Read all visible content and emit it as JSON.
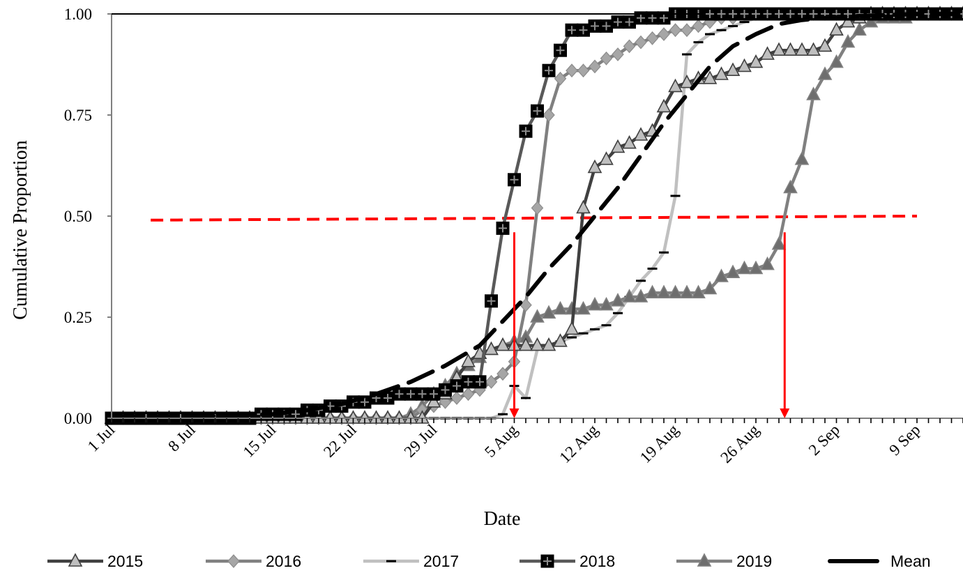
{
  "chart_data": {
    "type": "line",
    "xlabel": "Date",
    "ylabel": "Cumulative Proportion",
    "x_tick_labels": [
      "1 Jul",
      "8 Jul",
      "15 Jul",
      "22 Jul",
      "29 Jul",
      "5 Aug",
      "12 Aug",
      "19 Aug",
      "26 Aug",
      "2 Sep",
      "9 Sep"
    ],
    "x_tick_days": [
      0,
      7,
      14,
      21,
      28,
      35,
      42,
      49,
      56,
      63,
      70
    ],
    "xlim": [
      0,
      74
    ],
    "y_tick_labels": [
      "0.00",
      "0.25",
      "0.50",
      "0.75",
      "1.00"
    ],
    "y_tick_values": [
      0,
      0.25,
      0.5,
      0.75,
      1.0
    ],
    "ylim": [
      0,
      1
    ],
    "grid": false,
    "legend_position": "bottom",
    "series": [
      {
        "name": "2015",
        "style": "line-triangle",
        "color": "#404040",
        "marker_fill": "#bfbfbf",
        "x": [
          0,
          1,
          2,
          3,
          4,
          5,
          6,
          7,
          8,
          9,
          10,
          11,
          12,
          13,
          14,
          15,
          16,
          17,
          18,
          19,
          20,
          21,
          22,
          23,
          24,
          25,
          26,
          27,
          28,
          29,
          30,
          31,
          32,
          33,
          34,
          35,
          36,
          37,
          38,
          39,
          40,
          41,
          42,
          43,
          44,
          45,
          46,
          47,
          48,
          49,
          50,
          51,
          52,
          53,
          54,
          55,
          56,
          57,
          58,
          59,
          60,
          61,
          62,
          63,
          64,
          65,
          66,
          67,
          68,
          69,
          70,
          71,
          72,
          73,
          74
        ],
        "y": [
          0,
          0,
          0,
          0,
          0,
          0,
          0,
          0,
          0,
          0,
          0,
          0,
          0,
          0,
          0,
          0,
          0,
          0,
          0,
          0,
          0,
          0,
          0,
          0,
          0,
          0,
          0,
          0,
          0.04,
          0.06,
          0.1,
          0.14,
          0.16,
          0.17,
          0.18,
          0.18,
          0.18,
          0.18,
          0.18,
          0.19,
          0.22,
          0.52,
          0.62,
          0.64,
          0.67,
          0.68,
          0.7,
          0.71,
          0.77,
          0.82,
          0.83,
          0.84,
          0.84,
          0.85,
          0.86,
          0.87,
          0.88,
          0.9,
          0.91,
          0.91,
          0.91,
          0.91,
          0.92,
          0.96,
          0.98,
          0.99,
          1,
          1,
          1,
          1,
          1,
          1,
          1,
          1,
          1
        ]
      },
      {
        "name": "2016",
        "style": "line-diamond",
        "color": "#808080",
        "marker_fill": "#a6a6a6",
        "x": [
          0,
          1,
          2,
          3,
          4,
          5,
          6,
          7,
          8,
          9,
          10,
          11,
          12,
          13,
          14,
          15,
          16,
          17,
          18,
          19,
          20,
          21,
          22,
          23,
          24,
          25,
          26,
          27,
          28,
          29,
          30,
          31,
          32,
          33,
          34,
          35,
          36,
          37,
          38,
          39,
          40,
          41,
          42,
          43,
          44,
          45,
          46,
          47,
          48,
          49,
          50,
          51,
          52,
          53,
          54,
          55,
          56,
          57,
          58,
          59,
          60,
          61,
          62,
          63,
          64,
          65,
          66,
          67,
          68,
          69,
          70,
          71,
          72,
          73,
          74
        ],
        "y": [
          0,
          0,
          0,
          0,
          0,
          0,
          0,
          0,
          0,
          0,
          0,
          0,
          0,
          0,
          0,
          0,
          0,
          0,
          0,
          0,
          0,
          0,
          0,
          0,
          0,
          0,
          0,
          0.02,
          0.03,
          0.04,
          0.05,
          0.06,
          0.07,
          0.09,
          0.11,
          0.14,
          0.28,
          0.52,
          0.75,
          0.84,
          0.86,
          0.86,
          0.87,
          0.89,
          0.9,
          0.92,
          0.93,
          0.94,
          0.95,
          0.96,
          0.96,
          0.97,
          0.98,
          0.99,
          0.99,
          1,
          1,
          1,
          1,
          1,
          1,
          1,
          1,
          1,
          1,
          1,
          1,
          1,
          1,
          1,
          1,
          1,
          1,
          1,
          1
        ]
      },
      {
        "name": "2017",
        "style": "line-dash",
        "color": "#c0c0c0",
        "marker_fill": "#000000",
        "x": [
          0,
          1,
          2,
          3,
          4,
          5,
          6,
          7,
          8,
          9,
          10,
          11,
          12,
          13,
          14,
          15,
          16,
          17,
          18,
          19,
          20,
          21,
          22,
          23,
          24,
          25,
          26,
          27,
          28,
          29,
          30,
          31,
          32,
          33,
          34,
          35,
          36,
          37,
          38,
          39,
          40,
          41,
          42,
          43,
          44,
          45,
          46,
          47,
          48,
          49,
          50,
          51,
          52,
          53,
          54,
          55,
          56,
          57,
          58,
          59,
          60,
          61,
          62,
          63,
          64,
          65,
          66,
          67,
          68,
          69,
          70,
          71,
          72,
          73,
          74
        ],
        "y": [
          0,
          0,
          0,
          0,
          0,
          0,
          0,
          0,
          0,
          0,
          0,
          0,
          0,
          0,
          0,
          0,
          0,
          0,
          0,
          0,
          0,
          0,
          0,
          0,
          0,
          0,
          0,
          0,
          0,
          0,
          0,
          0,
          0,
          0,
          0.01,
          0.08,
          0.05,
          0.17,
          0.18,
          0.19,
          0.2,
          0.21,
          0.22,
          0.23,
          0.26,
          0.3,
          0.34,
          0.37,
          0.41,
          0.55,
          0.9,
          0.93,
          0.95,
          0.96,
          0.97,
          0.98,
          0.99,
          1,
          1,
          1,
          1,
          1,
          1,
          1,
          1,
          1,
          1,
          1,
          1,
          1,
          1,
          1,
          1,
          1,
          1
        ]
      },
      {
        "name": "2018",
        "style": "line-square",
        "color": "#595959",
        "marker_fill": "#000000",
        "x": [
          0,
          1,
          2,
          3,
          4,
          5,
          6,
          7,
          8,
          9,
          10,
          11,
          12,
          13,
          14,
          15,
          16,
          17,
          18,
          19,
          20,
          21,
          22,
          23,
          24,
          25,
          26,
          27,
          28,
          29,
          30,
          31,
          32,
          33,
          34,
          35,
          36,
          37,
          38,
          39,
          40,
          41,
          42,
          43,
          44,
          45,
          46,
          47,
          48,
          49,
          50,
          51,
          52,
          53,
          54,
          55,
          56,
          57,
          58,
          59,
          60,
          61,
          62,
          63,
          64,
          65,
          66,
          67,
          68,
          69,
          70,
          71,
          72,
          73,
          74
        ],
        "y": [
          0,
          0,
          0,
          0,
          0,
          0,
          0,
          0,
          0,
          0,
          0,
          0,
          0,
          0.01,
          0.01,
          0.01,
          0.01,
          0.02,
          0.02,
          0.03,
          0.03,
          0.04,
          0.04,
          0.05,
          0.05,
          0.06,
          0.06,
          0.06,
          0.06,
          0.07,
          0.08,
          0.09,
          0.09,
          0.29,
          0.47,
          0.59,
          0.71,
          0.76,
          0.86,
          0.91,
          0.96,
          0.96,
          0.97,
          0.97,
          0.98,
          0.98,
          0.99,
          0.99,
          0.99,
          1,
          1,
          1,
          1,
          1,
          1,
          1,
          1,
          1,
          1,
          1,
          1,
          1,
          1,
          1,
          1,
          1,
          1,
          1,
          1,
          1,
          1,
          1,
          1,
          1,
          1
        ]
      },
      {
        "name": "2019",
        "style": "line-triangle",
        "color": "#808080",
        "marker_fill": "#6e6e6e",
        "x": [
          0,
          1,
          2,
          3,
          4,
          5,
          6,
          7,
          8,
          9,
          10,
          11,
          12,
          13,
          14,
          15,
          16,
          17,
          18,
          19,
          20,
          21,
          22,
          23,
          24,
          25,
          26,
          27,
          28,
          29,
          30,
          31,
          32,
          33,
          34,
          35,
          36,
          37,
          38,
          39,
          40,
          41,
          42,
          43,
          44,
          45,
          46,
          47,
          48,
          49,
          50,
          51,
          52,
          53,
          54,
          55,
          56,
          57,
          58,
          59,
          60,
          61,
          62,
          63,
          64,
          65,
          66,
          67,
          68,
          69,
          70,
          71,
          72,
          73,
          74
        ],
        "y": [
          0,
          0,
          0,
          0,
          0,
          0,
          0,
          0,
          0,
          0,
          0,
          0,
          0,
          0,
          0,
          0,
          0,
          0,
          0,
          0,
          0,
          0,
          0,
          0,
          0,
          0,
          0.01,
          0.03,
          0.06,
          0.08,
          0.11,
          0.13,
          0.15,
          0.17,
          0.18,
          0.19,
          0.2,
          0.25,
          0.26,
          0.27,
          0.27,
          0.27,
          0.28,
          0.28,
          0.29,
          0.3,
          0.3,
          0.31,
          0.31,
          0.31,
          0.31,
          0.31,
          0.32,
          0.35,
          0.36,
          0.37,
          0.37,
          0.38,
          0.43,
          0.57,
          0.64,
          0.8,
          0.85,
          0.88,
          0.93,
          0.96,
          0.98,
          0.99,
          0.99,
          0.99,
          1,
          1,
          1,
          1,
          1
        ]
      },
      {
        "name": "Mean",
        "style": "long-dash",
        "color": "#000000",
        "x": [
          0,
          5,
          10,
          14,
          17,
          20,
          23,
          26,
          29,
          32,
          34,
          36,
          38,
          40,
          42,
          44,
          46,
          48,
          50,
          52,
          54,
          56,
          58,
          60,
          62,
          65,
          70,
          74
        ],
        "y": [
          0.005,
          0.005,
          0.006,
          0.01,
          0.02,
          0.035,
          0.06,
          0.09,
          0.13,
          0.18,
          0.24,
          0.3,
          0.37,
          0.43,
          0.5,
          0.57,
          0.65,
          0.73,
          0.8,
          0.87,
          0.92,
          0.95,
          0.975,
          0.985,
          0.99,
          0.995,
          1,
          1
        ]
      }
    ],
    "annotations": {
      "median_line": {
        "y_start": 0.49,
        "y_end": 0.5,
        "x_start": 3.4,
        "x_end": 70,
        "color": "#ff0000",
        "style": "dashed"
      },
      "arrows": [
        {
          "x": 35,
          "y_from": 0.46,
          "y_to": 0.0,
          "color": "#ff0000"
        },
        {
          "x": 58.5,
          "y_from": 0.46,
          "y_to": 0.0,
          "color": "#ff0000"
        }
      ]
    }
  }
}
